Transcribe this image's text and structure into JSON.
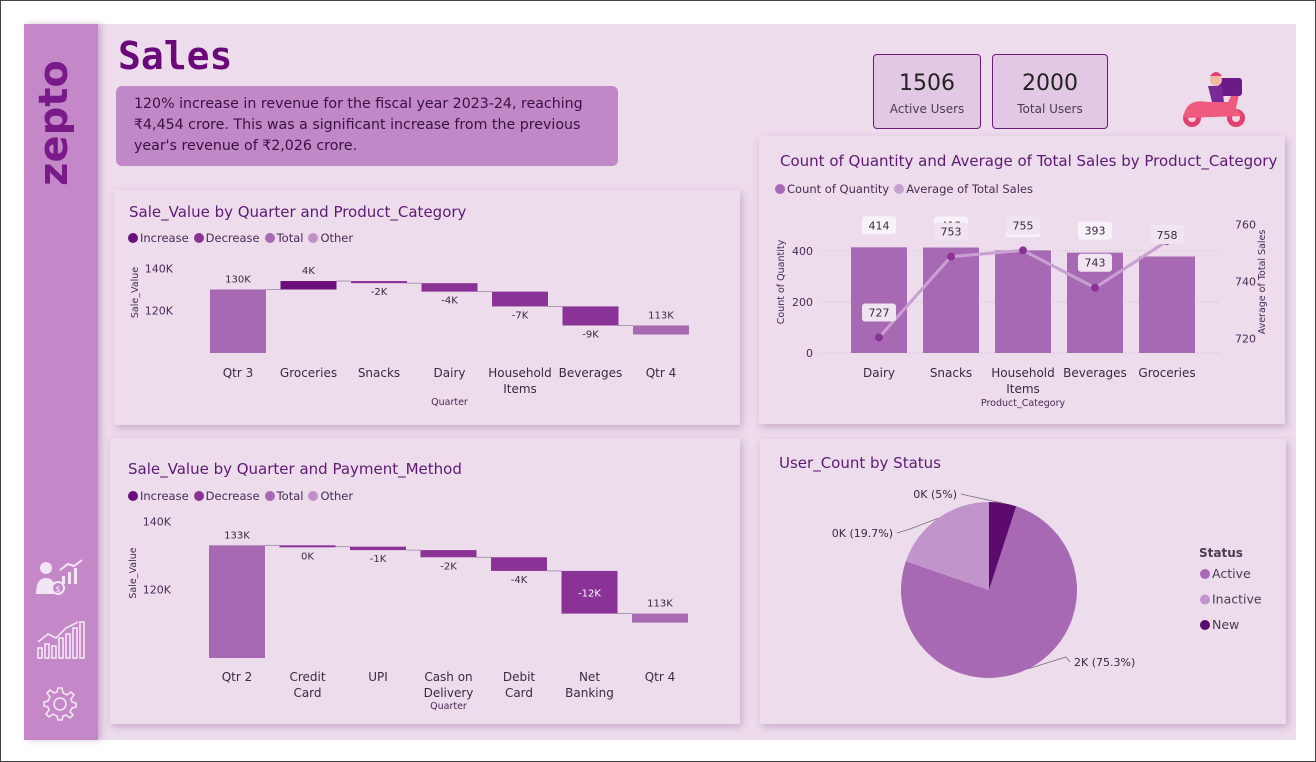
{
  "app": {
    "brand": "zepto",
    "page_title": "Sales",
    "callout": "120% increase in revenue for the fiscal year 2023-24, reaching ₹4,454 crore. This was a significant increase from the previous year's revenue of ₹2,026 crore."
  },
  "kpis": [
    {
      "value": "1506",
      "label": "Active Users"
    },
    {
      "value": "2000",
      "label": "Total Users"
    }
  ],
  "nav": {
    "icons": [
      "user-growth-icon",
      "bar-chart-icon",
      "settings-gear-icon"
    ]
  },
  "colors": {
    "increase": "#6b0d7a",
    "decrease": "#8a3296",
    "total": "#a869b4",
    "other": "#c090ca",
    "background": "#ecdcec",
    "sidebar": "#c488c8",
    "pie_active": "#a869b4",
    "pie_inactive": "#c195cc",
    "pie_new": "#5c0a6e"
  },
  "legend_waterfall": [
    "Increase",
    "Decrease",
    "Total",
    "Other"
  ],
  "chart_data": [
    {
      "type": "bar",
      "subtype": "waterfall",
      "title": "Sale_Value by Quarter and Product_Category",
      "xlabel": "Quarter",
      "ylabel": "Sale_Value",
      "yticks": [
        "120K",
        "140K"
      ],
      "ylim": [
        100,
        143
      ],
      "categories": [
        "Qtr 3",
        "Groceries",
        "Snacks",
        "Dairy",
        "Household Items",
        "Beverages",
        "Qtr 4"
      ],
      "steps": [
        {
          "label": "130K",
          "kind": "total",
          "from": 100,
          "to": 130
        },
        {
          "label": "4K",
          "kind": "increase",
          "from": 130,
          "to": 134
        },
        {
          "label": "-2K",
          "kind": "decrease",
          "from": 134,
          "to": 133
        },
        {
          "label": "-4K",
          "kind": "decrease",
          "from": 133,
          "to": 129
        },
        {
          "label": "-7K",
          "kind": "decrease",
          "from": 129,
          "to": 122
        },
        {
          "label": "-9K",
          "kind": "decrease",
          "from": 122,
          "to": 113
        },
        {
          "label": "113K",
          "kind": "total",
          "from": 113,
          "to": 110
        }
      ]
    },
    {
      "type": "bar",
      "subtype": "waterfall",
      "title": "Sale_Value by Quarter and Payment_Method",
      "xlabel": "Quarter",
      "ylabel": "Sale_Value",
      "yticks": [
        "120K",
        "140K"
      ],
      "ylim": [
        100,
        141
      ],
      "categories": [
        "Qtr 2",
        "Credit Card",
        "UPI",
        "Cash on Delivery",
        "Debit Card",
        "Net Banking",
        "Qtr 4"
      ],
      "steps": [
        {
          "label": "133K",
          "kind": "total",
          "from": 100,
          "to": 133
        },
        {
          "label": "0K",
          "kind": "decrease",
          "from": 133,
          "to": 132.6
        },
        {
          "label": "-1K",
          "kind": "decrease",
          "from": 132.6,
          "to": 131.6
        },
        {
          "label": "-2K",
          "kind": "decrease",
          "from": 131.6,
          "to": 129.5
        },
        {
          "label": "-4K",
          "kind": "decrease",
          "from": 129.5,
          "to": 125.5
        },
        {
          "label": "-12K",
          "kind": "decrease",
          "from": 125.5,
          "to": 113
        },
        {
          "label": "113K",
          "kind": "total",
          "from": 113,
          "to": 110
        }
      ]
    },
    {
      "type": "bar",
      "subtype": "bar-line-combo",
      "title": "Count of Quantity and Average of Total Sales by Product_Category",
      "xlabel": "Product_Category",
      "ylabel": "Count of Quantity",
      "y2label": "Average of Total Sales",
      "categories": [
        "Dairy",
        "Snacks",
        "Household Items",
        "Beverages",
        "Groceries"
      ],
      "ylim": [
        0,
        560
      ],
      "yticks": [
        0,
        200,
        400
      ],
      "y2lim": [
        722,
        768
      ],
      "y2ticks": [
        720,
        740,
        760
      ],
      "series": [
        {
          "name": "Count of Quantity",
          "kind": "bar",
          "values": [
            414,
            413,
            402,
            393,
            378
          ]
        },
        {
          "name": "Average of Total Sales",
          "kind": "line",
          "values": [
            727,
            753,
            755,
            743,
            758
          ]
        }
      ]
    },
    {
      "type": "pie",
      "title": "User_Count by Status",
      "legend_title": "Status",
      "slices": [
        {
          "name": "Active",
          "value": 75.3,
          "label": "2K (75.3%)"
        },
        {
          "name": "Inactive",
          "value": 19.7,
          "label": "0K (19.7%)"
        },
        {
          "name": "New",
          "value": 5,
          "label": "0K (5%)"
        }
      ]
    }
  ]
}
